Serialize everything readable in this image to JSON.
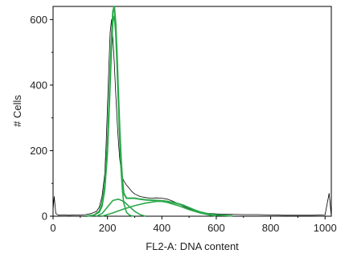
{
  "chart_data": {
    "type": "line",
    "title": "",
    "xlabel": "FL2-A: DNA content",
    "ylabel": "# Cells",
    "xlim": [
      0,
      1023
    ],
    "ylim": [
      0,
      640
    ],
    "xticks": [
      0,
      200,
      400,
      600,
      800,
      1000
    ],
    "yticks": [
      0,
      200,
      400,
      600
    ],
    "grid": false,
    "legend": "none",
    "colors": {
      "histogram": "#000000",
      "fit": "#2aa84a"
    },
    "series": [
      {
        "style": "histogram",
        "x": [
          0,
          4,
          10,
          20,
          40,
          60,
          80,
          100,
          120,
          140,
          160,
          170,
          180,
          190,
          195,
          200,
          205,
          210,
          215,
          220,
          225,
          230,
          235,
          240,
          245,
          250,
          255,
          260,
          270,
          280,
          290,
          300,
          320,
          340,
          360,
          380,
          400,
          420,
          440,
          460,
          480,
          500,
          520,
          540,
          560,
          580,
          600,
          650,
          700,
          750,
          800,
          850,
          900,
          950,
          1000,
          1015,
          1023
        ],
        "y": [
          20,
          60,
          8,
          3,
          4,
          3,
          4,
          4,
          5,
          8,
          15,
          28,
          60,
          130,
          220,
          330,
          450,
          560,
          600,
          540,
          470,
          380,
          300,
          230,
          175,
          140,
          118,
          108,
          95,
          85,
          75,
          68,
          60,
          57,
          55,
          56,
          55,
          52,
          46,
          38,
          30,
          23,
          16,
          12,
          9,
          8,
          7,
          6,
          5,
          5,
          4,
          3,
          3,
          3,
          4,
          70,
          0
        ]
      },
      {
        "style": "fit",
        "x": [
          120,
          150,
          170,
          180,
          190,
          200,
          205,
          210,
          215,
          220,
          225,
          230,
          235,
          240,
          245,
          250,
          255,
          260,
          270,
          280,
          290,
          300
        ],
        "y": [
          0,
          3,
          12,
          30,
          80,
          190,
          290,
          400,
          510,
          595,
          610,
          560,
          460,
          340,
          230,
          140,
          80,
          40,
          12,
          4,
          1,
          0
        ]
      },
      {
        "style": "fit",
        "x": [
          160,
          180,
          200,
          220,
          240,
          260,
          280,
          300,
          320,
          340
        ],
        "y": [
          0,
          8,
          28,
          48,
          52,
          45,
          30,
          15,
          5,
          0
        ]
      },
      {
        "style": "fit",
        "x": [
          180,
          220,
          260,
          300,
          340,
          380,
          400,
          420,
          460,
          500,
          540,
          580,
          600
        ],
        "y": [
          0,
          10,
          22,
          32,
          40,
          45,
          45,
          42,
          32,
          20,
          10,
          3,
          0
        ]
      },
      {
        "style": "fit",
        "x": [
          120,
          150,
          170,
          180,
          190,
          200,
          205,
          210,
          215,
          220,
          225,
          230,
          235,
          240,
          245,
          250,
          255,
          260,
          270,
          280,
          290,
          300,
          320,
          340,
          360,
          380,
          400,
          420,
          440,
          460,
          480,
          500,
          520,
          540,
          560,
          580,
          600,
          620,
          640,
          660
        ],
        "y": [
          0,
          3,
          15,
          40,
          95,
          215,
          320,
          430,
          540,
          625,
          640,
          590,
          490,
          372,
          262,
          172,
          110,
          70,
          55,
          55,
          55,
          55,
          52,
          50,
          49,
          48,
          47,
          45,
          42,
          38,
          33,
          26,
          19,
          13,
          9,
          6,
          4,
          3,
          2,
          1
        ]
      }
    ]
  }
}
